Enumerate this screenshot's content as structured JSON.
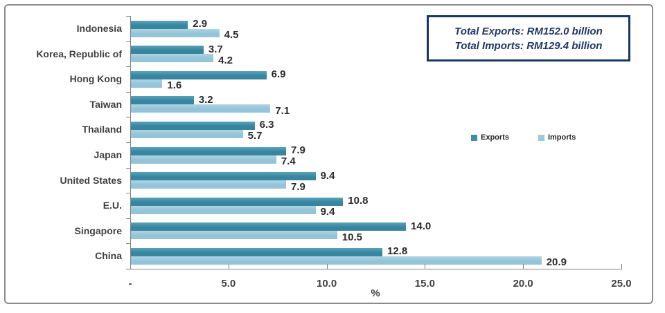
{
  "chart_data": {
    "type": "bar",
    "orientation": "horizontal",
    "xlabel": "%",
    "xlim": [
      0,
      25
    ],
    "categories": [
      "Indonesia",
      "Korea, Republic of",
      "Hong Kong",
      "Taiwan",
      "Thailand",
      "Japan",
      "United States",
      "E.U.",
      "Singapore",
      "China"
    ],
    "series": [
      {
        "name": "Exports",
        "color": "#3e8ea8",
        "values": [
          2.9,
          3.7,
          6.9,
          3.2,
          6.3,
          7.9,
          9.4,
          10.8,
          14.0,
          12.8
        ]
      },
      {
        "name": "Imports",
        "color": "#9cc8db",
        "values": [
          4.5,
          4.2,
          1.6,
          7.1,
          5.7,
          7.4,
          7.9,
          9.4,
          10.5,
          20.9
        ]
      }
    ],
    "xticks": [
      {
        "value": 0,
        "label": "-"
      },
      {
        "value": 5,
        "label": "5.0"
      },
      {
        "value": 10,
        "label": "10.0"
      },
      {
        "value": 15,
        "label": "15.0"
      },
      {
        "value": 20,
        "label": "20.0"
      },
      {
        "value": 25,
        "label": "25.0"
      }
    ],
    "value_label_decimals": 1,
    "grid": false,
    "legend_position": "middle-right"
  },
  "annotation_box": {
    "lines": [
      "Total Exports: RM152.0 billion",
      "Total Imports: RM129.4 billion"
    ],
    "border_color": "#17375e",
    "text_color": "#1f3864"
  },
  "colors": {
    "axis": "#808080",
    "label_text": "#404040",
    "frame_border": "#8c8c8c"
  }
}
